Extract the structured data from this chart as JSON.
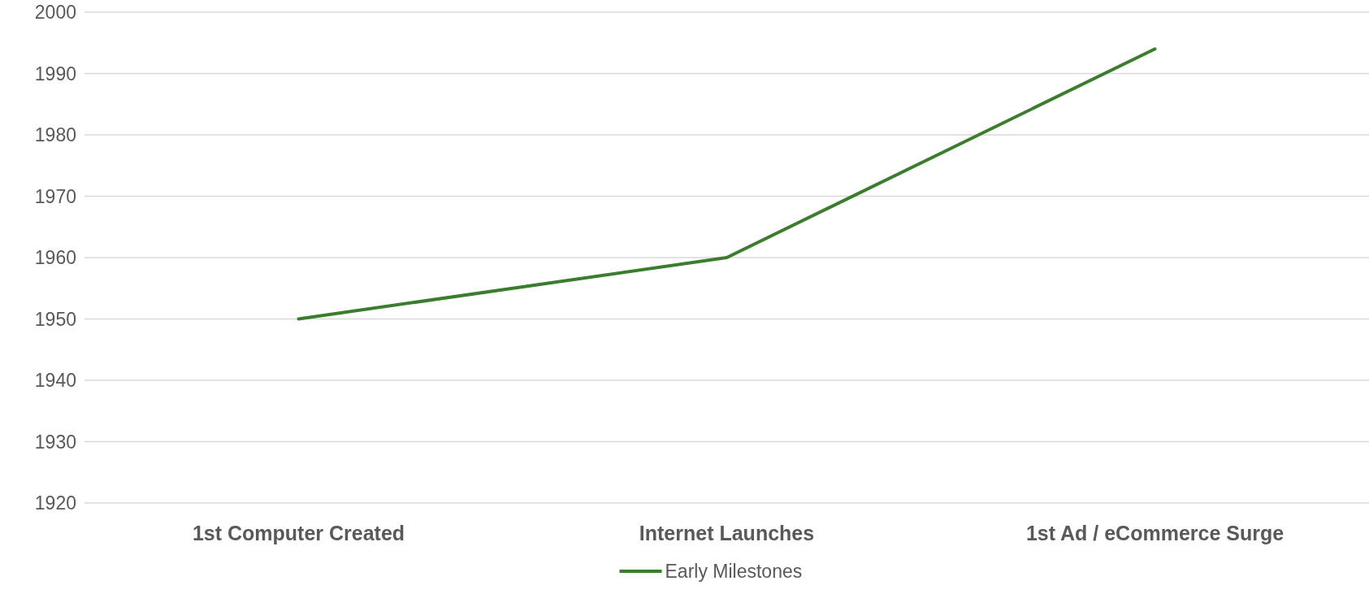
{
  "chart_data": {
    "type": "line",
    "categories": [
      "1st Computer Created",
      "Internet Launches",
      "1st Ad / eCommerce Surge"
    ],
    "series": [
      {
        "name": "Early Milestones",
        "color": "#3a7d2c",
        "values": [
          1950,
          1960,
          1994
        ]
      }
    ],
    "ylim": [
      1920,
      2000
    ],
    "yticks": [
      1920,
      1930,
      1940,
      1950,
      1960,
      1970,
      1980,
      1990,
      2000
    ],
    "grid": "y",
    "legend": "bottom",
    "marker": "none",
    "line_style": "solid"
  }
}
